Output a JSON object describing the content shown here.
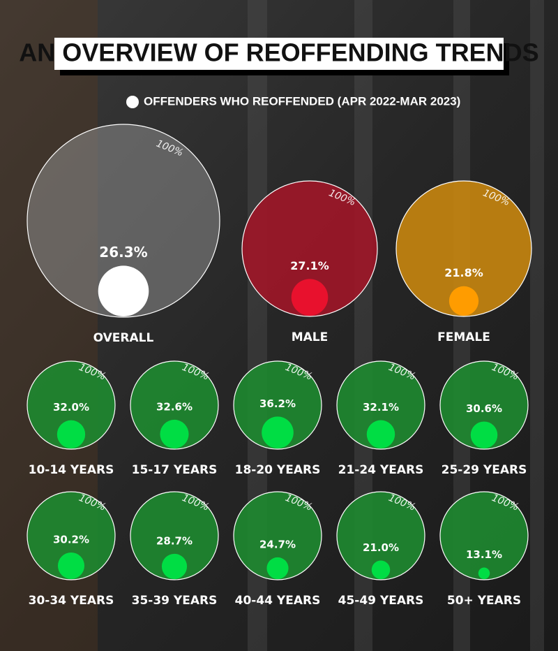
{
  "chart_data": {
    "type": "proportional-circles",
    "title": "AN OVERVIEW OF REOFFENDING TRENDS",
    "legend": "OFFENDERS WHO REOFFENDED (APR 2022-MAR 2023)",
    "legend_color": "#ffffff",
    "reference": {
      "value": 100,
      "label": "100%"
    },
    "categories": [
      "OVERALL",
      "MALE",
      "FEMALE",
      "10-14 YEARS",
      "15-17 YEARS",
      "18-20 YEARS",
      "21-24 YEARS",
      "25-29 YEARS",
      "30-34 YEARS",
      "35-39 YEARS",
      "40-44 YEARS",
      "45-49 YEARS",
      "50+ YEARS"
    ],
    "values": [
      26.3,
      27.1,
      21.8,
      32.0,
      32.6,
      36.2,
      32.1,
      30.6,
      30.2,
      28.7,
      24.7,
      21.0,
      13.1
    ],
    "value_labels": [
      "26.3%",
      "27.1%",
      "21.8%",
      "32.0%",
      "32.6%",
      "36.2%",
      "32.1%",
      "30.6%",
      "30.2%",
      "28.7%",
      "24.7%",
      "21.0%",
      "13.1%"
    ],
    "colors": [
      "#ffffff",
      "#e8112d",
      "#ff9c00",
      "#00dd44",
      "#00dd44",
      "#00dd44",
      "#00dd44",
      "#00dd44",
      "#00dd44",
      "#00dd44",
      "#00dd44",
      "#00dd44",
      "#00dd44"
    ],
    "circle_colors": [
      "#8c8c8c",
      "#a01628",
      "#c8860f",
      "#1e8a30",
      "#1e8a30",
      "#1e8a30",
      "#1e8a30",
      "#1e8a30",
      "#1e8a30",
      "#1e8a30",
      "#1e8a30",
      "#1e8a30",
      "#1e8a30"
    ]
  }
}
